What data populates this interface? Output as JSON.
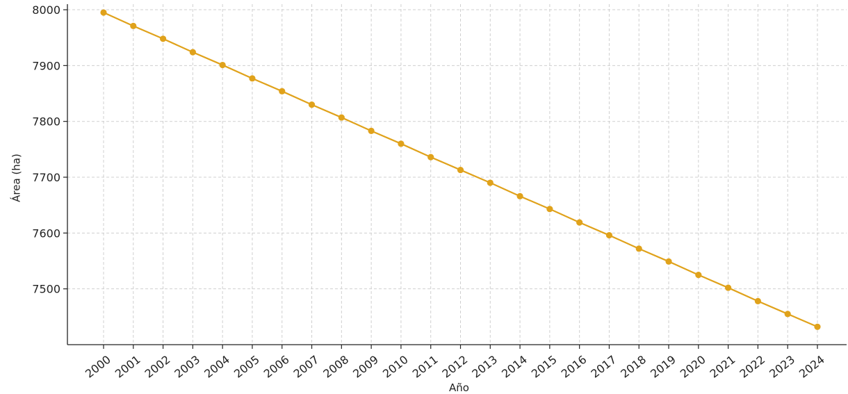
{
  "chart_data": {
    "type": "line",
    "title": "",
    "xlabel": "Año",
    "ylabel": "Área (ha)",
    "x": [
      2000,
      2001,
      2002,
      2003,
      2004,
      2005,
      2006,
      2007,
      2008,
      2009,
      2010,
      2011,
      2012,
      2013,
      2014,
      2015,
      2016,
      2017,
      2018,
      2019,
      2020,
      2021,
      2022,
      2023,
      2024
    ],
    "x_tick_labels": [
      "2000",
      "2001",
      "2002",
      "2003",
      "2004",
      "2005",
      "2006",
      "2007",
      "2008",
      "2009",
      "2010",
      "2011",
      "2012",
      "2013",
      "2014",
      "2015",
      "2016",
      "2017",
      "2018",
      "2019",
      "2020",
      "2021",
      "2022",
      "2023",
      "2024"
    ],
    "series": [
      {
        "values": [
          7995,
          7971,
          7948,
          7924,
          7901,
          7877,
          7854,
          7830,
          7807,
          7783,
          7760,
          7736,
          7713,
          7690,
          7666,
          7643,
          7619,
          7596,
          7572,
          7549,
          7525,
          7502,
          7478,
          7455,
          7432
        ],
        "color": "#e0a21b",
        "marker": "circle"
      }
    ],
    "y_ticks": [
      7500,
      7600,
      7700,
      7800,
      7900,
      8000
    ],
    "y_tick_labels": [
      "7500",
      "7600",
      "7700",
      "7800",
      "7900",
      "8000"
    ],
    "ylim": [
      7400,
      8010
    ],
    "grid": true,
    "legend": "none"
  }
}
